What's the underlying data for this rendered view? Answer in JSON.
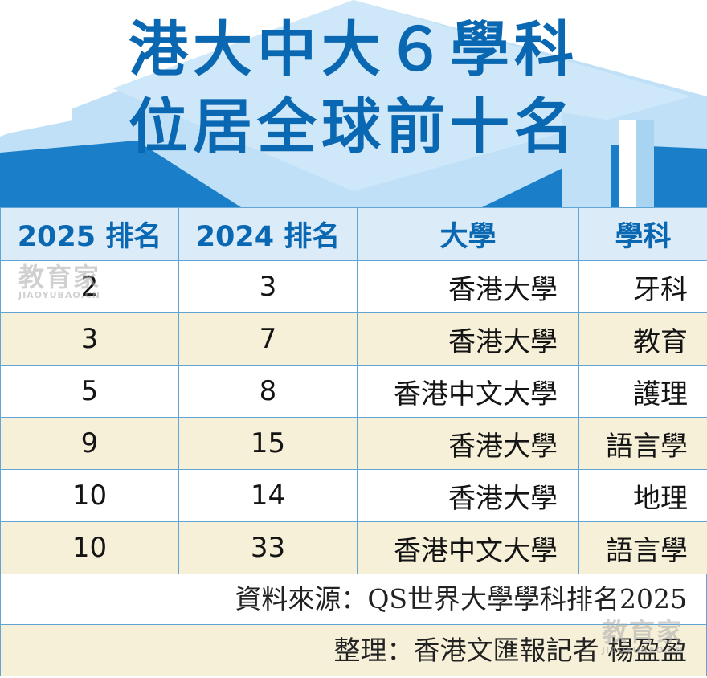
{
  "title": {
    "line1": "港大中大６學科",
    "line2": "位居全球前十名"
  },
  "table": {
    "headers": [
      "2025 排名",
      "2024 排名",
      "大學",
      "學科"
    ],
    "rows": [
      {
        "rank_2025": "2",
        "rank_2024": "3",
        "university": "香港大學",
        "subject": "牙科"
      },
      {
        "rank_2025": "3",
        "rank_2024": "7",
        "university": "香港大學",
        "subject": "教育"
      },
      {
        "rank_2025": "5",
        "rank_2024": "8",
        "university": "香港中文大學",
        "subject": "護理"
      },
      {
        "rank_2025": "9",
        "rank_2024": "15",
        "university": "香港大學",
        "subject": "語言學"
      },
      {
        "rank_2025": "10",
        "rank_2024": "14",
        "university": "香港大學",
        "subject": "地理"
      },
      {
        "rank_2025": "10",
        "rank_2024": "33",
        "university": "香港中文大學",
        "subject": "語言學"
      }
    ]
  },
  "source": "資料來源：QS世界大學學科排名2025",
  "credit": "整理：香港文匯報記者 楊盈盈",
  "watermark": {
    "text": "教育家",
    "subtext": "JIAOYUBAO.CN"
  },
  "colors": {
    "title": "#0a67b2",
    "header_bg": "#dcebf8",
    "stripe": "#f7f0d9",
    "border": "#5fa6d6",
    "cap_dark": "#1a7fc8",
    "cap_light": "#bfe0f6"
  }
}
